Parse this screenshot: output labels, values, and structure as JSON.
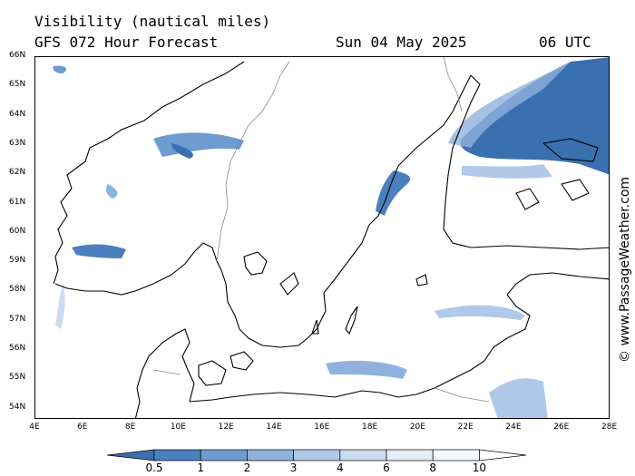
{
  "header": {
    "line1": "Visibility (nautical miles)",
    "line2_left": "GFS 072 Hour Forecast",
    "date": "Sun 04 May 2025",
    "time": "06 UTC"
  },
  "watermark": "© www.PassageWeather.com",
  "lat_labels": [
    "66N",
    "65N",
    "64N",
    "63N",
    "62N",
    "61N",
    "60N",
    "59N",
    "58N",
    "57N",
    "56N",
    "55N",
    "54N"
  ],
  "lon_labels": [
    "4E",
    "6E",
    "8E",
    "10E",
    "12E",
    "14E",
    "16E",
    "18E",
    "20E",
    "22E",
    "24E",
    "26E",
    "28E"
  ],
  "legend": {
    "labels": [
      "0.5",
      "1",
      "2",
      "3",
      "4",
      "6",
      "8",
      "10"
    ],
    "colors": [
      "#3a6fb0",
      "#4b80c0",
      "#6e9bd0",
      "#8fb2dc",
      "#b0c9e8",
      "#ccdcf0",
      "#e4edf8",
      "#f6f9fd",
      "#ffffff"
    ]
  }
}
